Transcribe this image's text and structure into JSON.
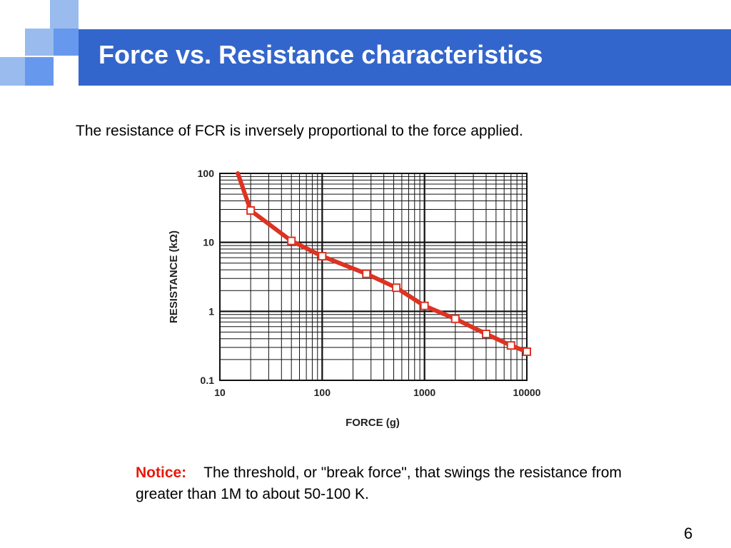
{
  "slide": {
    "title": "Force vs. Resistance characteristics",
    "intro": "The resistance of FCR is inversely proportional to the force applied.",
    "notice_label": "Notice:",
    "notice_text": "The threshold, or \"break force\", that swings the resistance from greater than 1M to about 50-100 K.",
    "page_number": "6",
    "colors": {
      "title_bar": "#3366cc",
      "accent_light": "#99bbee",
      "accent_mid": "#6699ee",
      "notice": "#e8180a",
      "curve": "#dd3322"
    }
  },
  "chart_data": {
    "type": "line",
    "xlabel": "FORCE (g)",
    "ylabel": "RESISTANCE (kΩ)",
    "x_scale": "log",
    "y_scale": "log",
    "xlim": [
      10,
      10000
    ],
    "ylim": [
      0.1,
      100
    ],
    "x_ticks": [
      "10",
      "100",
      "1000",
      "10000"
    ],
    "y_ticks": [
      "0.1",
      "1",
      "10",
      "100"
    ],
    "grid": true,
    "legend": "none",
    "series": [
      {
        "x": [
          15,
          20,
          50,
          100,
          270,
          530,
          1000,
          2000,
          4000,
          7000,
          10000
        ],
        "y": [
          100,
          29,
          10.5,
          6.3,
          3.5,
          2.2,
          1.2,
          0.78,
          0.47,
          0.32,
          0.26
        ],
        "markers": [
          false,
          true,
          true,
          true,
          true,
          true,
          true,
          true,
          true,
          true,
          true
        ]
      }
    ]
  }
}
